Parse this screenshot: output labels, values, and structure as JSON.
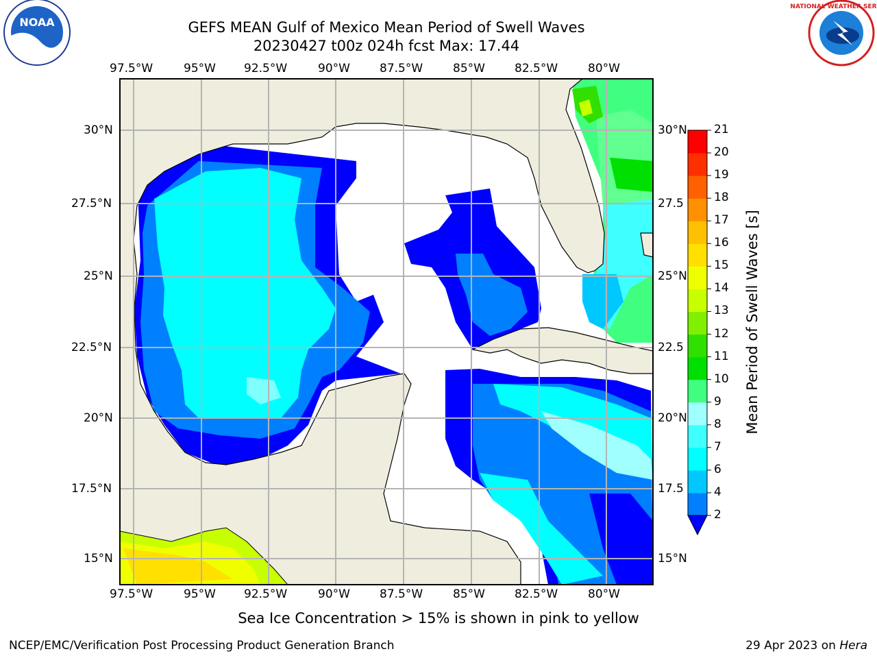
{
  "title": {
    "line1": "GEFS MEAN Gulf of Mexico Mean Period of Swell Waves",
    "line2": "20230427 t00z 024h fcst   Max: 17.44"
  },
  "logos": {
    "left": "noaa-logo",
    "right": "nws-logo"
  },
  "map": {
    "lon_labels": [
      "97.5°W",
      "95°W",
      "92.5°W",
      "90°W",
      "87.5°W",
      "85°W",
      "82.5°W",
      "80°W"
    ],
    "lat_labels": [
      "30°N",
      "27.5°N",
      "25°N",
      "22.5°N",
      "20°N",
      "17.5°N",
      "15°N"
    ],
    "right_lat_labels": [
      "30°N",
      "27.5",
      "25°N",
      "22.5",
      "20°N",
      "17.5",
      "15°N"
    ],
    "colors": {
      "land": "#efedde",
      "grid": "#b4b4b4",
      "coast": "#000000"
    }
  },
  "colorbar": {
    "label": "Mean Period of Swell Waves [s]",
    "ticks": [
      "2",
      "4",
      "6",
      "7",
      "8",
      "9",
      "10",
      "11",
      "12",
      "13",
      "14",
      "15",
      "16",
      "17",
      "18",
      "19",
      "20",
      "21"
    ],
    "colors": [
      "#0000ff",
      "#0080ff",
      "#00c8ff",
      "#00ffff",
      "#40ffff",
      "#a0ffff",
      "#40ff80",
      "#00e000",
      "#30e000",
      "#80f000",
      "#c8ff00",
      "#f0ff00",
      "#ffe000",
      "#ffc000",
      "#ff9000",
      "#ff6000",
      "#ff3000",
      "#ff0000"
    ]
  },
  "footer": {
    "note": "Sea Ice Concentration > 15% is shown in pink to yellow",
    "left": "NCEP/EMC/Verification Post Processing Product Generation Branch",
    "right_date": "29 Apr 2023 on ",
    "right_host": "Hera"
  }
}
